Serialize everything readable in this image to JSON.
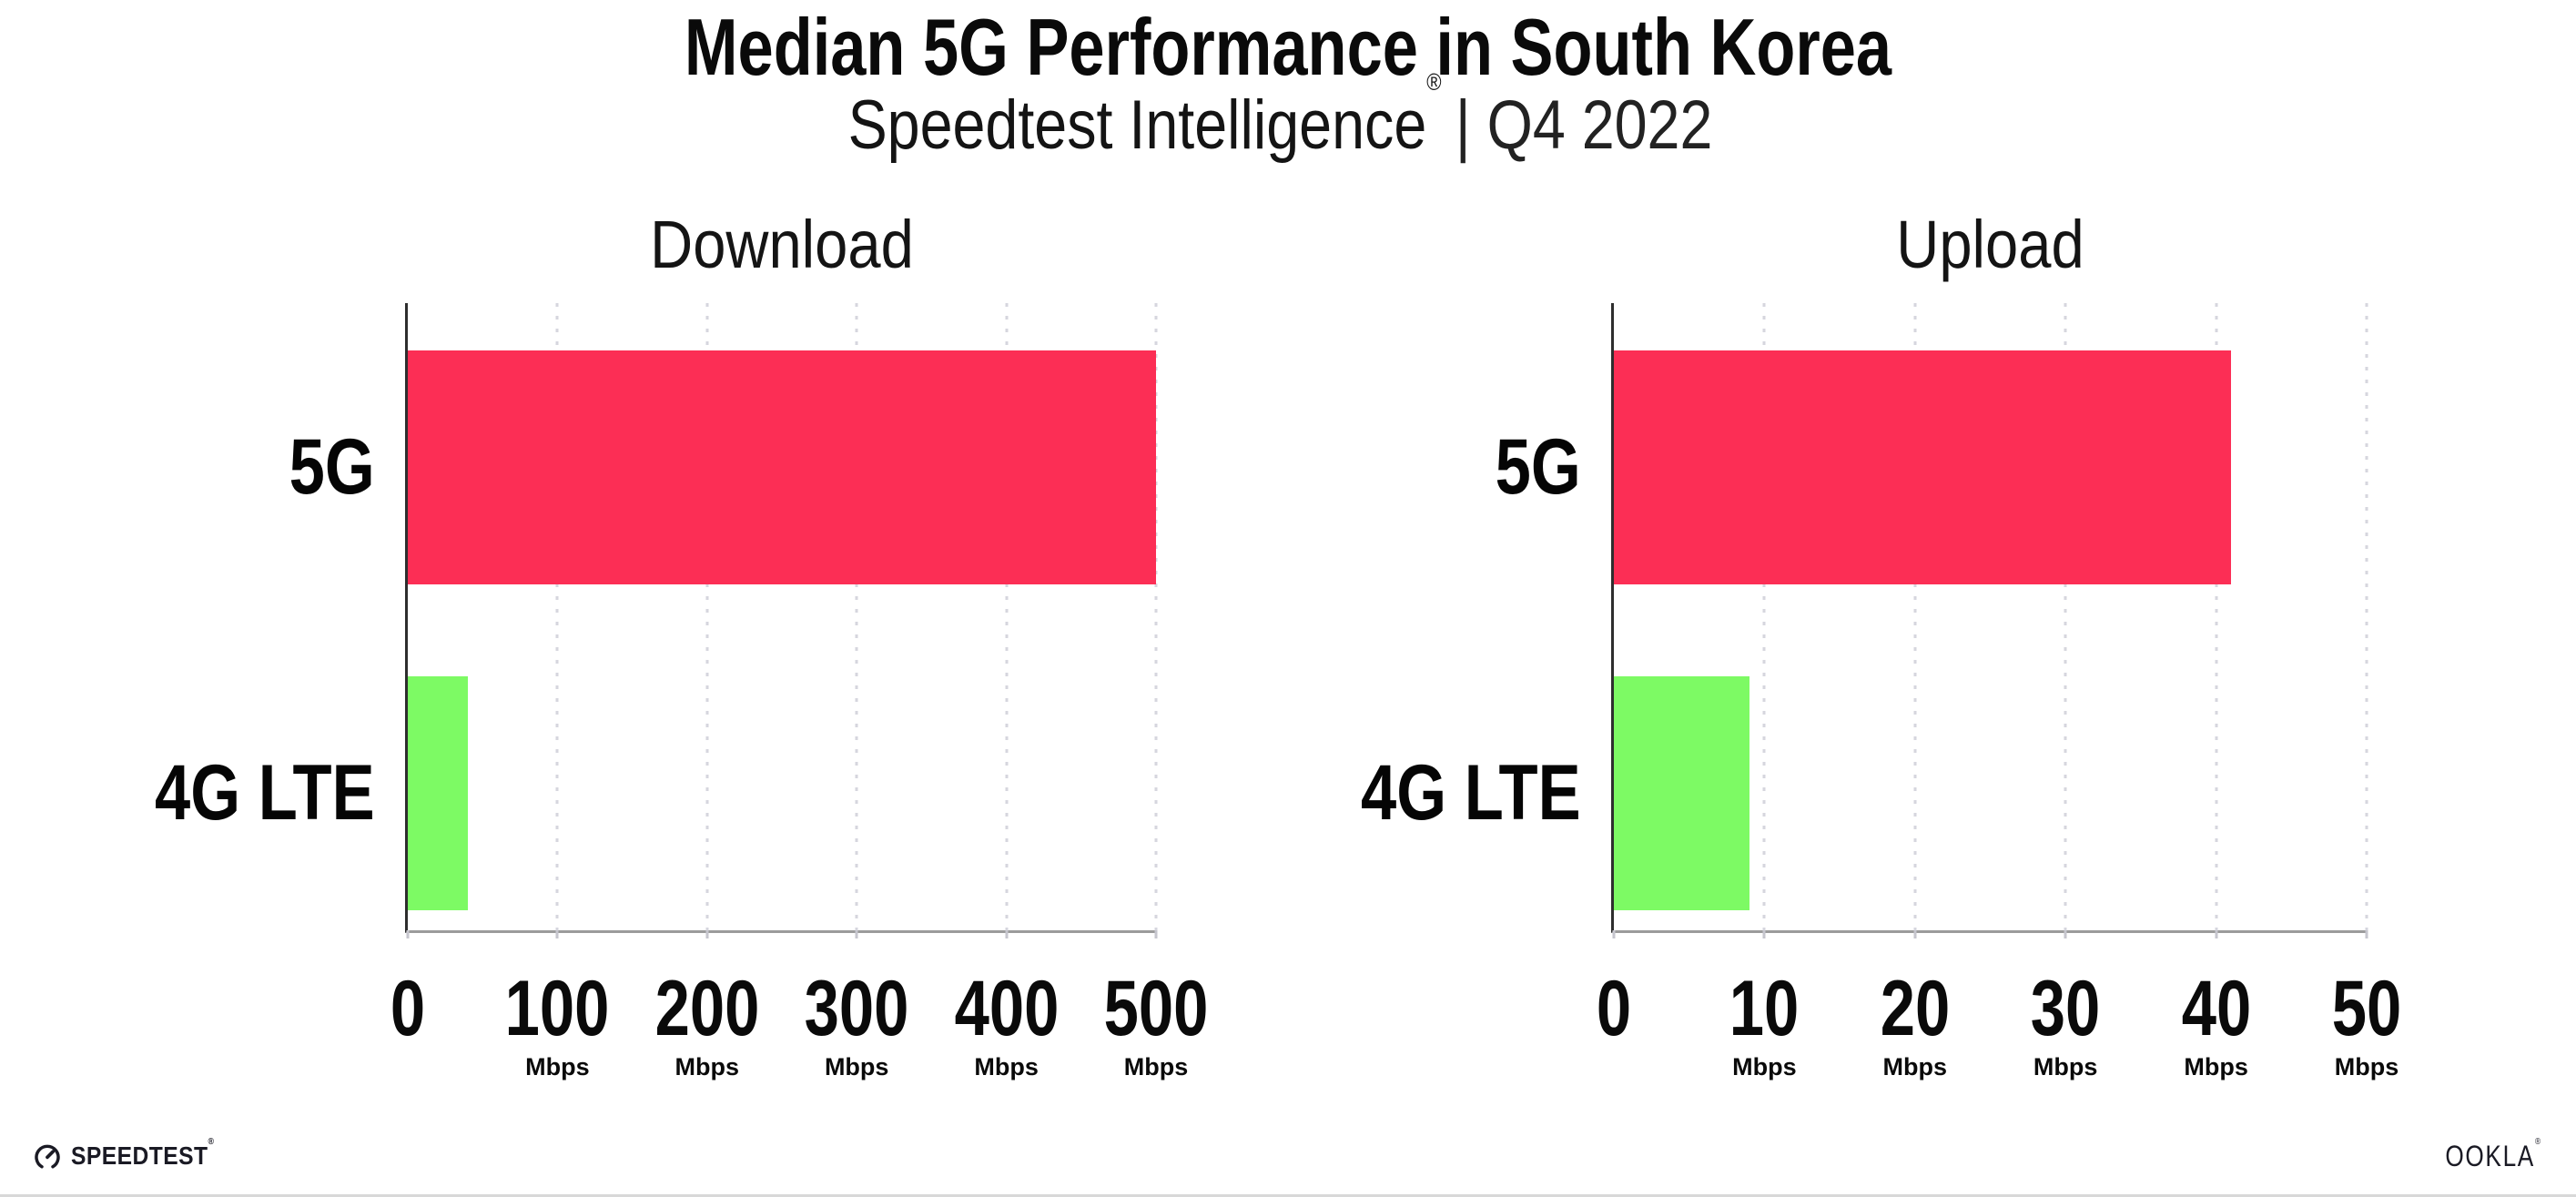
{
  "header": {
    "title": "Median 5G Performance in South Korea",
    "subtitle_brand": "Speedtest Intelligence",
    "subtitle_mark": "®",
    "subtitle_rest": "| Q4 2022"
  },
  "chart_data": [
    {
      "type": "bar",
      "orientation": "horizontal",
      "title": "Download",
      "categories": [
        "5G",
        "4G LTE"
      ],
      "values": [
        500,
        40
      ],
      "unit": "Mbps",
      "xlim": [
        0,
        500
      ],
      "xticks": [
        0,
        100,
        200,
        300,
        400,
        500
      ],
      "bar_colors": [
        "#fc2e55",
        "#7dfa64"
      ],
      "grid": "dotted-vertical",
      "ylabel": "",
      "xlabel": "Mbps"
    },
    {
      "type": "bar",
      "orientation": "horizontal",
      "title": "Upload",
      "categories": [
        "5G",
        "4G LTE"
      ],
      "values": [
        41,
        9
      ],
      "unit": "Mbps",
      "xlim": [
        0,
        50
      ],
      "xticks": [
        0,
        10,
        20,
        30,
        40,
        50
      ],
      "bar_colors": [
        "#fc2e55",
        "#7dfa64"
      ],
      "grid": "dotted-vertical",
      "ylabel": "",
      "xlabel": "Mbps"
    }
  ],
  "footer": {
    "speedtest_label": "SPEEDTEST",
    "speedtest_mark": "®",
    "ookla_label": "OOKLA",
    "ookla_mark": "®"
  },
  "colors": {
    "bar_5g": "#fc2e55",
    "bar_4g_lte": "#7dfa64",
    "gridline": "#d6d6de",
    "y_axis": "#2e2e2e",
    "x_axis": "#9b9b9b",
    "text": "#0a0a0a",
    "background": "#ffffff"
  }
}
